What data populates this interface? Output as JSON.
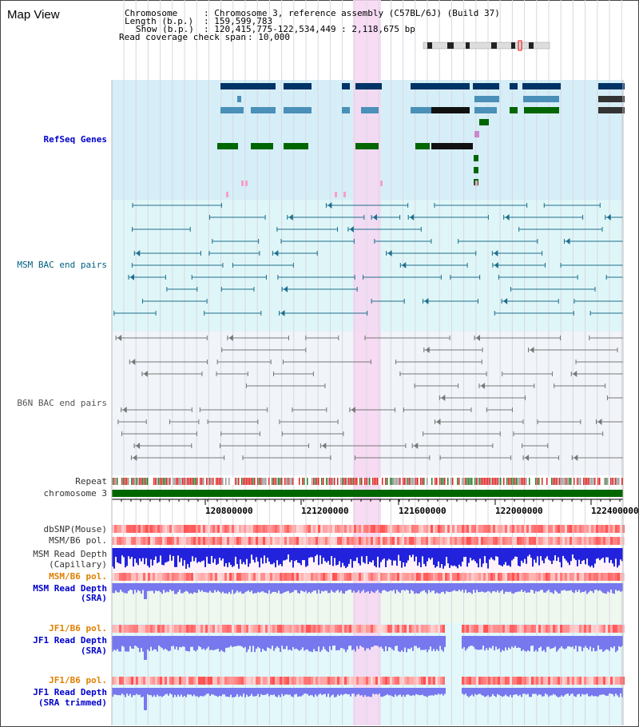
{
  "title": "Map View",
  "header": {
    "chromosome_label": "Chromosome",
    "chromosome_value": ": Chromosome 3, reference assembly (C57BL/6J) (Build 37)",
    "length_label": "Length (b.p.)",
    "length_value": ": 159,599,783",
    "show_label": "Show (b.p.)",
    "show_value": ": 120,415,775-122,534,449 : 2,118,675 bp",
    "coverage_label": "Read coverage check span",
    "coverage_value": ": 10,000"
  },
  "tracks": {
    "refseq": "RefSeq Genes",
    "msm_bac": "MSM BAC end pairs",
    "b6n_bac": "B6N BAC end pairs",
    "repeat": "Repeat",
    "chromosome": "chromosome 3",
    "dbsnp": "dbSNP(Mouse)",
    "msm_b6_pol": "MSM/B6 pol.",
    "msm_read_depth_cap": "MSM Read Depth",
    "msm_read_depth_cap_sub": "(Capillary)",
    "msm_b6_pol2": "MSM/B6 pol.",
    "msm_read_depth_sra": "MSM Read Depth",
    "msm_read_depth_sra_sub": "(SRA)",
    "jf1_b6_pol": "JF1/B6 pol.",
    "jf1_read_depth_sra": "JF1 Read Depth",
    "jf1_read_depth_sra_sub": "(SRA)",
    "jf1_b6_pol2": "JF1/B6 pol.",
    "jf1_read_depth_trim": "JF1 Read Depth",
    "jf1_read_depth_trim_sub": "(SRA trimmed)"
  },
  "axis": {
    "ticks": [
      "120800000",
      "121200000",
      "121600000",
      "122000000",
      "122400000"
    ]
  },
  "colors": {
    "refseq_bg": "#d6eef8",
    "msm_bg": "#dff6f8",
    "b6n_bg": "#eef4f8",
    "highlight": "#f7d6f2",
    "chromosome_bar": "#006600",
    "refseq_dark": "#003366",
    "refseq_mid": "#4a90b8",
    "refseq_green": "#006600",
    "depth_blue": "#2222dd",
    "depth_light": "#7777ee",
    "pol_red": "#ff6666"
  }
}
